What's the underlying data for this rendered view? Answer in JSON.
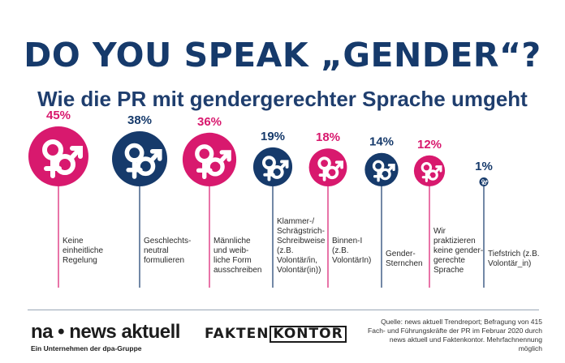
{
  "header": {
    "title": "DO YOU SPEAK „GENDER“?",
    "subtitle": "Wie die PR mit gendergerechter Sprache umgeht"
  },
  "colors": {
    "pink": "#d8196e",
    "navy": "#163a6b",
    "line": "#c7cfda"
  },
  "chart_data": {
    "type": "bubble",
    "title": "DO YOU SPEAK „GENDER“?",
    "subtitle": "Wie die PR mit gendergerechter Sprache umgeht",
    "unit": "%",
    "icon": "gender-symbols-icon",
    "categories": [
      "Keine einheitliche Regelung",
      "Geschlechts-neutral formulieren",
      "Männliche und weib-liche Form ausschreiben",
      "Klammer-/Schrägstrich-Schreibweise (z.B. Volontär/in, Volontär(in))",
      "Binnen-I (z.B. VolontärIn)",
      "Gender-Sternchen",
      "Wir praktizieren keine gender-gerechte Sprache",
      "Tiefstrich (z.B. Volontär_in)"
    ],
    "values": [
      45,
      38,
      36,
      19,
      18,
      14,
      12,
      1
    ],
    "value_labels": [
      "45%",
      "38%",
      "36%",
      "19%",
      "18%",
      "14%",
      "12%",
      "1%"
    ],
    "label_lines": [
      [
        "Keine",
        "einheitliche",
        "Regelung"
      ],
      [
        "Geschlechts-",
        "neutral",
        "formulieren"
      ],
      [
        "Männliche",
        "und weib-",
        "liche Form",
        "ausschreiben"
      ],
      [
        "Klammer-/",
        "Schrägstrich-",
        "Schreibweise",
        "(z.B.",
        "Volontär/in,",
        "Volontär(in))"
      ],
      [
        "Binnen-I",
        "(z.B.",
        "VolontärIn)"
      ],
      [
        "Gender-",
        "Sternchen"
      ],
      [
        "Wir",
        "praktizieren",
        "keine gender-",
        "gerechte",
        "Sprache"
      ],
      [
        "Tiefstrich (z.B.",
        "Volontär_in)"
      ]
    ],
    "colors": [
      "#d8196e",
      "#163a6b",
      "#d8196e",
      "#163a6b",
      "#d8196e",
      "#163a6b",
      "#d8196e",
      "#163a6b"
    ]
  },
  "footer": {
    "brand_na": "na • news aktuell",
    "brand_sub": "Ein Unternehmen der dpa-Gruppe",
    "brand_fakten": "FAKTEN",
    "brand_kontor": "KONTOR",
    "source": "Quelle: news aktuell Trendreport; Befragung von 415 Fach- und Führungskräfte der PR im Februar 2020 durch news aktuell und Faktenkontor. Mehrfachnennung möglich"
  }
}
